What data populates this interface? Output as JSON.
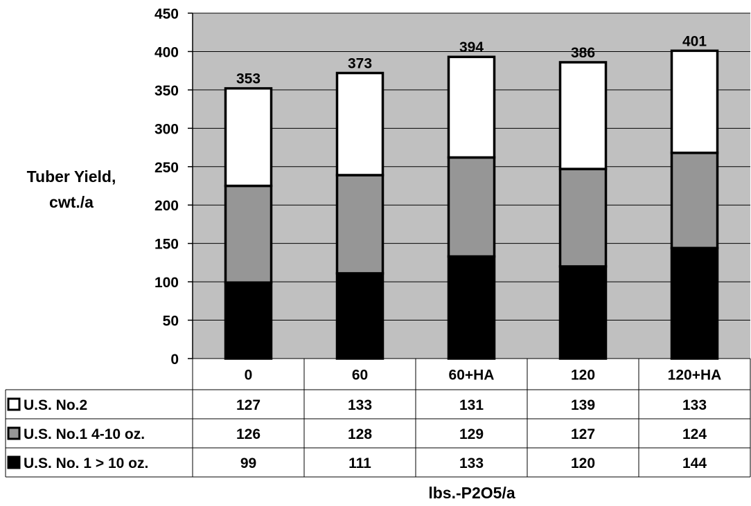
{
  "chart_data": {
    "type": "bar",
    "stacked": true,
    "title": "",
    "ylabel_lines": [
      "Tuber Yield,",
      "cwt./a"
    ],
    "xlabel": "lbs.-P2O5/a",
    "ylim": [
      0,
      450
    ],
    "yticks": [
      0,
      50,
      100,
      150,
      200,
      250,
      300,
      350,
      400,
      450
    ],
    "grid": true,
    "legend": "data-table",
    "categories": [
      "0",
      "60",
      "60+HA",
      "120",
      "120+HA"
    ],
    "totals": [
      "353",
      "373",
      "394",
      "386",
      "401"
    ],
    "series": [
      {
        "name": "U.S. No. 1 > 10 oz.",
        "color": "#000000",
        "values": [
          99,
          111,
          133,
          120,
          144
        ]
      },
      {
        "name": "U.S. No.1 4-10 oz.",
        "color": "#969696",
        "values": [
          126,
          128,
          129,
          127,
          124
        ]
      },
      {
        "name": "U.S. No.2",
        "color": "#ffffff",
        "values": [
          127,
          133,
          131,
          139,
          133
        ]
      }
    ],
    "table_row_order": [
      2,
      1,
      0
    ],
    "plot_background": "#c0c0c0"
  }
}
